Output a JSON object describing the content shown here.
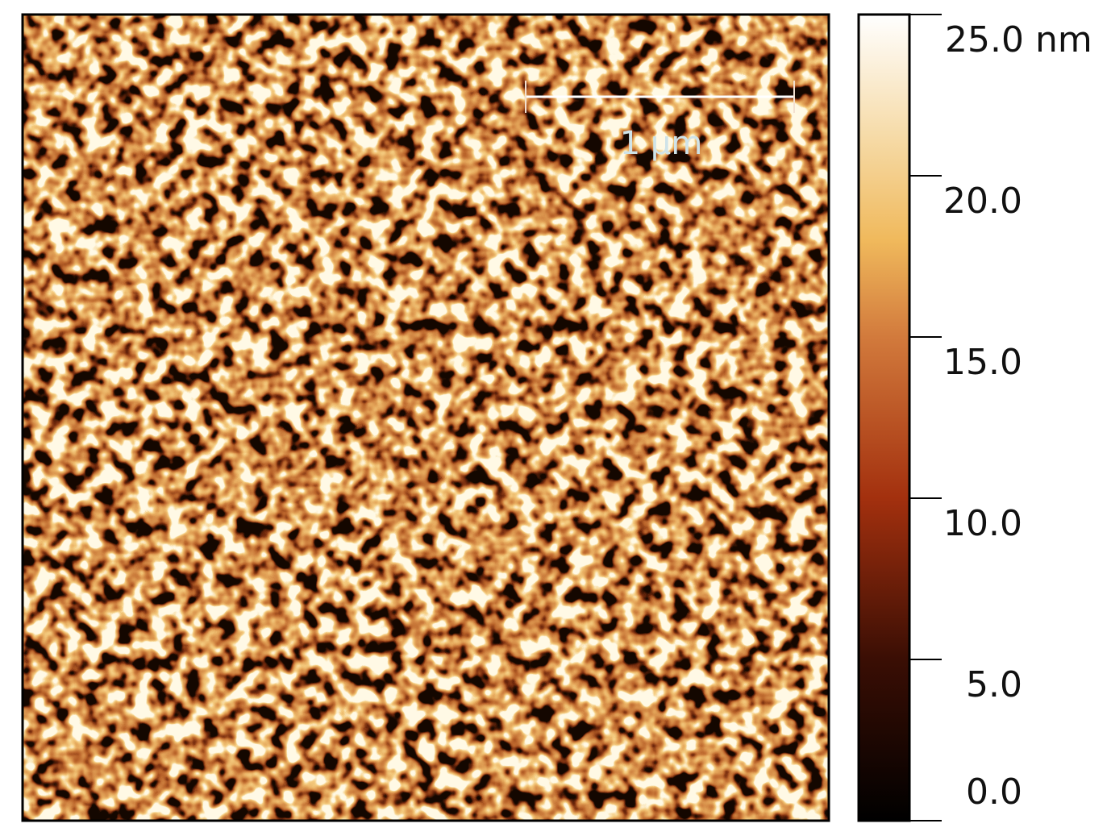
{
  "image": {
    "scale_bar": {
      "label": "1 µm"
    }
  },
  "colorbar": {
    "ylim": [
      0,
      25
    ],
    "ticks": [
      {
        "value": 25,
        "label": "25.0 nm"
      },
      {
        "value": 20,
        "label": "20.0"
      },
      {
        "value": 15,
        "label": "15.0"
      },
      {
        "value": 10,
        "label": "10.0"
      },
      {
        "value": 5,
        "label": "5.0"
      },
      {
        "value": 0,
        "label": "0.0"
      }
    ]
  }
}
